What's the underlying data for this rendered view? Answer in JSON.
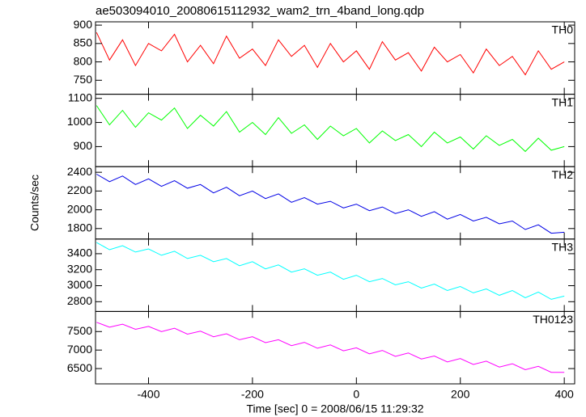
{
  "chart_data": {
    "type": "line",
    "title": "ae503094010_20080615112932_wam2_trn_4band_long.qdp",
    "xlabel": "Time [sec] 0 = 2008/06/15 11:29:32",
    "ylabel": "Counts/sec",
    "x": [
      -500,
      -475,
      -450,
      -425,
      -400,
      -375,
      -350,
      -325,
      -300,
      -275,
      -250,
      -225,
      -200,
      -175,
      -150,
      -125,
      -100,
      -75,
      -50,
      -25,
      0,
      25,
      50,
      75,
      100,
      125,
      150,
      175,
      200,
      225,
      250,
      275,
      300,
      325,
      350,
      375,
      400
    ],
    "xlim": [
      -502,
      420
    ],
    "xticks": [
      -400,
      -200,
      0,
      200,
      400
    ],
    "series": [
      {
        "name": "TH0",
        "color": "#ff0000",
        "ylim": [
          712,
          909
        ],
        "yticks": [
          750,
          800,
          850,
          900
        ],
        "values": [
          880,
          805,
          860,
          790,
          850,
          830,
          875,
          800,
          845,
          795,
          870,
          810,
          835,
          790,
          860,
          815,
          845,
          785,
          850,
          800,
          830,
          780,
          855,
          805,
          825,
          775,
          840,
          800,
          820,
          770,
          835,
          790,
          815,
          765,
          830,
          780,
          800
        ]
      },
      {
        "name": "TH1",
        "color": "#00ff00",
        "ylim": [
          817,
          1117
        ],
        "yticks": [
          900,
          1000,
          1100
        ],
        "values": [
          1070,
          990,
          1050,
          980,
          1040,
          1010,
          1060,
          975,
          1030,
          985,
          1045,
          960,
          1000,
          950,
          1020,
          955,
          990,
          930,
          985,
          945,
          975,
          915,
          965,
          925,
          950,
          900,
          960,
          915,
          940,
          890,
          945,
          905,
          930,
          880,
          935,
          885,
          900
        ]
      },
      {
        "name": "TH2",
        "color": "#0000e6",
        "ylim": [
          1688,
          2460
        ],
        "yticks": [
          1800,
          2000,
          2200,
          2400
        ],
        "values": [
          2380,
          2300,
          2360,
          2270,
          2330,
          2250,
          2310,
          2230,
          2270,
          2180,
          2240,
          2150,
          2200,
          2120,
          2170,
          2080,
          2130,
          2060,
          2090,
          2020,
          2060,
          1990,
          2030,
          1960,
          2000,
          1930,
          1980,
          1900,
          1950,
          1880,
          1920,
          1850,
          1880,
          1790,
          1840,
          1750,
          1760
        ]
      },
      {
        "name": "TH3",
        "color": "#00ffff",
        "ylim": [
          2678,
          3583
        ],
        "yticks": [
          2800,
          3000,
          3200,
          3400
        ],
        "values": [
          3540,
          3450,
          3500,
          3420,
          3460,
          3380,
          3430,
          3340,
          3380,
          3300,
          3340,
          3250,
          3300,
          3210,
          3260,
          3170,
          3210,
          3130,
          3170,
          3080,
          3130,
          3050,
          3090,
          3010,
          3050,
          2970,
          3020,
          2940,
          2990,
          2910,
          2960,
          2880,
          2940,
          2850,
          2920,
          2830,
          2870
        ]
      },
      {
        "name": "TH0123",
        "color": "#ff00ff",
        "ylim": [
          6087,
          8043
        ],
        "yticks": [
          6500,
          7000,
          7500
        ],
        "values": [
          7750,
          7620,
          7700,
          7560,
          7640,
          7500,
          7590,
          7430,
          7510,
          7360,
          7440,
          7280,
          7360,
          7200,
          7280,
          7120,
          7210,
          7050,
          7140,
          6980,
          7060,
          6900,
          6990,
          6830,
          6920,
          6760,
          6840,
          6680,
          6770,
          6610,
          6700,
          6540,
          6630,
          6470,
          6560,
          6400,
          6400
        ]
      }
    ]
  }
}
